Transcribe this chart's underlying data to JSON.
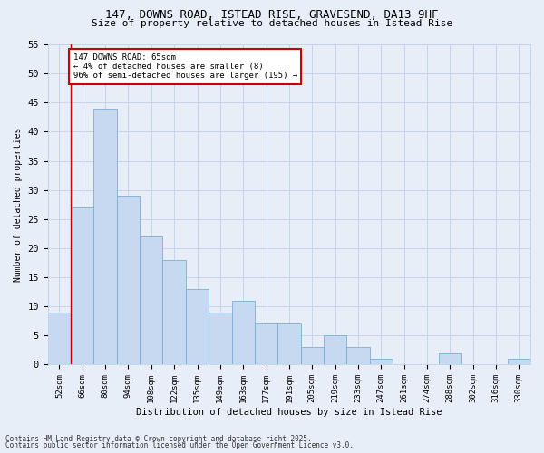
{
  "title1": "147, DOWNS ROAD, ISTEAD RISE, GRAVESEND, DA13 9HF",
  "title2": "Size of property relative to detached houses in Istead Rise",
  "xlabel": "Distribution of detached houses by size in Istead Rise",
  "ylabel": "Number of detached properties",
  "categories": [
    "52sqm",
    "66sqm",
    "80sqm",
    "94sqm",
    "108sqm",
    "122sqm",
    "135sqm",
    "149sqm",
    "163sqm",
    "177sqm",
    "191sqm",
    "205sqm",
    "219sqm",
    "233sqm",
    "247sqm",
    "261sqm",
    "274sqm",
    "288sqm",
    "302sqm",
    "316sqm",
    "330sqm"
  ],
  "values": [
    9,
    27,
    44,
    29,
    22,
    18,
    13,
    9,
    11,
    7,
    7,
    3,
    5,
    3,
    1,
    0,
    0,
    2,
    0,
    0,
    1
  ],
  "bar_color": "#c6d9f0",
  "bar_edge_color": "#7bafd4",
  "annotation_line1": "147 DOWNS ROAD: 65sqm",
  "annotation_line2": "← 4% of detached houses are smaller (8)",
  "annotation_line3": "96% of semi-detached houses are larger (195) →",
  "annotation_box_color": "#ffffff",
  "annotation_border_color": "#cc0000",
  "ylim": [
    0,
    55
  ],
  "yticks": [
    0,
    5,
    10,
    15,
    20,
    25,
    30,
    35,
    40,
    45,
    50,
    55
  ],
  "grid_color": "#c8d4e8",
  "footer1": "Contains HM Land Registry data © Crown copyright and database right 2025.",
  "footer2": "Contains public sector information licensed under the Open Government Licence v3.0.",
  "bg_color": "#e8eef8",
  "plot_bg_color": "#e8eef8"
}
